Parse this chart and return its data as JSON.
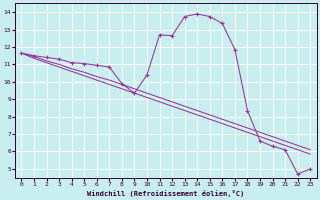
{
  "background_color": "#c8eef0",
  "grid_color": "#ffffff",
  "line_color": "#993399",
  "xlabel": "Windchill (Refroidissement éolien,°C)",
  "x_hours": [
    0,
    1,
    2,
    3,
    4,
    5,
    6,
    7,
    8,
    9,
    10,
    11,
    12,
    13,
    14,
    15,
    16,
    17,
    18,
    19,
    20,
    21,
    22,
    23
  ],
  "y_main": [
    11.65,
    11.5,
    11.4,
    11.3,
    11.1,
    11.05,
    10.95,
    10.85,
    9.9,
    9.35,
    10.4,
    12.7,
    12.65,
    13.75,
    13.9,
    13.75,
    13.35,
    11.85,
    8.35,
    6.6,
    6.3,
    6.1,
    4.7,
    5.0
  ],
  "y_ref1": [
    11.65,
    11.35,
    11.1,
    10.85,
    10.6,
    10.35,
    10.1,
    9.85,
    9.6,
    9.35,
    9.1,
    8.85,
    8.6,
    8.35,
    8.1,
    7.85,
    7.6,
    7.35,
    7.1,
    6.85,
    6.6,
    6.35,
    6.1,
    5.85
  ],
  "y_ref2": [
    11.65,
    11.45,
    11.2,
    11.0,
    10.75,
    10.55,
    10.3,
    10.1,
    9.85,
    9.6,
    9.35,
    9.1,
    8.85,
    8.6,
    8.35,
    8.1,
    7.85,
    7.6,
    7.35,
    7.1,
    6.85,
    6.6,
    6.35,
    6.1
  ],
  "xlim": [
    -0.5,
    23.5
  ],
  "ylim": [
    4.5,
    14.5
  ],
  "yticks": [
    5,
    6,
    7,
    8,
    9,
    10,
    11,
    12,
    13,
    14
  ],
  "xticks": [
    0,
    1,
    2,
    3,
    4,
    5,
    6,
    7,
    8,
    9,
    10,
    11,
    12,
    13,
    14,
    15,
    16,
    17,
    18,
    19,
    20,
    21,
    22,
    23
  ]
}
